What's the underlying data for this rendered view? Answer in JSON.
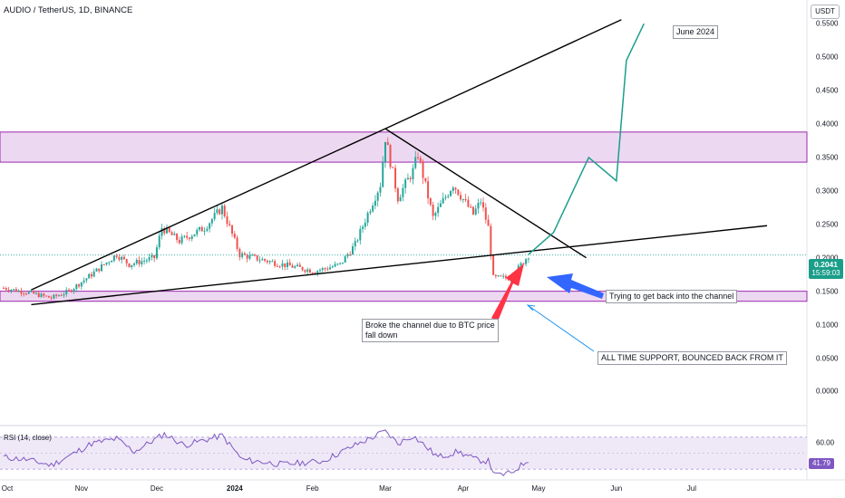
{
  "header": {
    "title": "AUDIO / TetherUS, 1D, BINANCE"
  },
  "price_axis": {
    "unit_label": "USDT",
    "current_price": "0.2041",
    "countdown": "15:59:03"
  },
  "x_axis_labels": [
    {
      "text": "Oct",
      "bold": false
    },
    {
      "text": "Nov",
      "bold": false
    },
    {
      "text": "Dec",
      "bold": false
    },
    {
      "text": "2024",
      "bold": true
    },
    {
      "text": "Feb",
      "bold": false
    },
    {
      "text": "Mar",
      "bold": false
    },
    {
      "text": "Apr",
      "bold": false
    },
    {
      "text": "May",
      "bold": false
    },
    {
      "text": "Jun",
      "bold": false
    },
    {
      "text": "Jul",
      "bold": false
    }
  ],
  "rsi": {
    "title": "RSI (14, close)",
    "current_value": "41.79",
    "axis_label": "60.00"
  },
  "annotations": {
    "target": "June 2024",
    "broke": "Broke the channel due to BTC price\nfall down",
    "trying": "Trying to get back into the channel",
    "support": "ALL TIME SUPPORT, BOUNCED BACK FROM IT"
  },
  "colors": {
    "up": "#26a69a",
    "down": "#ef5350",
    "zone": "#e1bee7",
    "zone_border": "#9c27b0",
    "projection": "#1b9e8c",
    "rsi_line": "#7e57c2",
    "red_arrow": "#ff3344",
    "blue_arrow": "#3366ff"
  },
  "chart_data": {
    "type": "candlestick",
    "title": "AUDIO / TetherUS, 1D, BINANCE",
    "ylim": [
      -0.04,
      0.58
    ],
    "y_ticks": [
      0.55,
      0.5,
      0.45,
      0.4,
      0.35,
      0.3,
      0.25,
      0.2,
      0.15,
      0.1,
      0.05,
      0.0
    ],
    "date_range": [
      "2023-10-01",
      "2024-07-31"
    ],
    "current_price": 0.2041,
    "anchors": [
      [
        "2023-10-01",
        0.155
      ],
      [
        "2023-10-12",
        0.147
      ],
      [
        "2023-10-20",
        0.14
      ],
      [
        "2023-10-27",
        0.15
      ],
      [
        "2023-11-05",
        0.175
      ],
      [
        "2023-11-15",
        0.205
      ],
      [
        "2023-11-20",
        0.19
      ],
      [
        "2023-11-30",
        0.2
      ],
      [
        "2023-12-03",
        0.245
      ],
      [
        "2023-12-10",
        0.225
      ],
      [
        "2023-12-20",
        0.245
      ],
      [
        "2023-12-27",
        0.275
      ],
      [
        "2024-01-03",
        0.205
      ],
      [
        "2024-01-20",
        0.19
      ],
      [
        "2024-02-02",
        0.18
      ],
      [
        "2024-02-12",
        0.19
      ],
      [
        "2024-02-18",
        0.22
      ],
      [
        "2024-02-24",
        0.275
      ],
      [
        "2024-02-28",
        0.31
      ],
      [
        "2024-03-01",
        0.38
      ],
      [
        "2024-03-06",
        0.29
      ],
      [
        "2024-03-12",
        0.33
      ],
      [
        "2024-03-14",
        0.355
      ],
      [
        "2024-03-20",
        0.26
      ],
      [
        "2024-03-28",
        0.31
      ],
      [
        "2024-04-05",
        0.265
      ],
      [
        "2024-04-08",
        0.285
      ],
      [
        "2024-04-11",
        0.245
      ],
      [
        "2024-04-13",
        0.17
      ],
      [
        "2024-04-20",
        0.17
      ],
      [
        "2024-04-27",
        0.204
      ]
    ],
    "support_zones": [
      {
        "from": 0.135,
        "to": 0.15
      }
    ],
    "resistance_zones": [
      {
        "from": 0.343,
        "to": 0.388
      }
    ],
    "trendlines": [
      {
        "name": "upper-wedge",
        "points": [
          [
            "2023-10-12",
            0.152
          ],
          [
            "2024-03-01",
            0.393
          ],
          [
            "2024-06-03",
            0.556
          ]
        ]
      },
      {
        "name": "lower-wedge",
        "points": [
          [
            "2023-10-12",
            0.13
          ],
          [
            "2024-07-31",
            0.248
          ]
        ]
      },
      {
        "name": "descending-resistance",
        "points": [
          [
            "2024-03-01",
            0.393
          ],
          [
            "2024-05-20",
            0.2
          ]
        ]
      }
    ],
    "projection": [
      [
        "2024-04-27",
        0.205
      ],
      [
        "2024-05-07",
        0.238
      ],
      [
        "2024-05-21",
        0.35
      ],
      [
        "2024-06-01",
        0.315
      ],
      [
        "2024-06-05",
        0.495
      ],
      [
        "2024-06-12",
        0.55
      ]
    ],
    "rsi": {
      "ylim": [
        20,
        80
      ],
      "ref_level": 60,
      "current": 41.79,
      "anchors": [
        [
          "2023-10-01",
          45
        ],
        [
          "2023-10-10",
          42
        ],
        [
          "2023-10-20",
          35
        ],
        [
          "2023-10-28",
          48
        ],
        [
          "2023-11-05",
          62
        ],
        [
          "2023-11-15",
          68
        ],
        [
          "2023-11-22",
          52
        ],
        [
          "2023-12-04",
          74
        ],
        [
          "2023-12-12",
          60
        ],
        [
          "2023-12-27",
          72
        ],
        [
          "2024-01-04",
          42
        ],
        [
          "2024-01-20",
          36
        ],
        [
          "2024-02-05",
          40
        ],
        [
          "2024-02-18",
          60
        ],
        [
          "2024-02-25",
          70
        ],
        [
          "2024-03-01",
          78
        ],
        [
          "2024-03-06",
          62
        ],
        [
          "2024-03-12",
          72
        ],
        [
          "2024-03-22",
          45
        ],
        [
          "2024-03-30",
          52
        ],
        [
          "2024-04-06",
          42
        ],
        [
          "2024-04-11",
          40
        ],
        [
          "2024-04-14",
          22
        ],
        [
          "2024-04-20",
          25
        ],
        [
          "2024-04-27",
          41.79
        ]
      ]
    }
  }
}
